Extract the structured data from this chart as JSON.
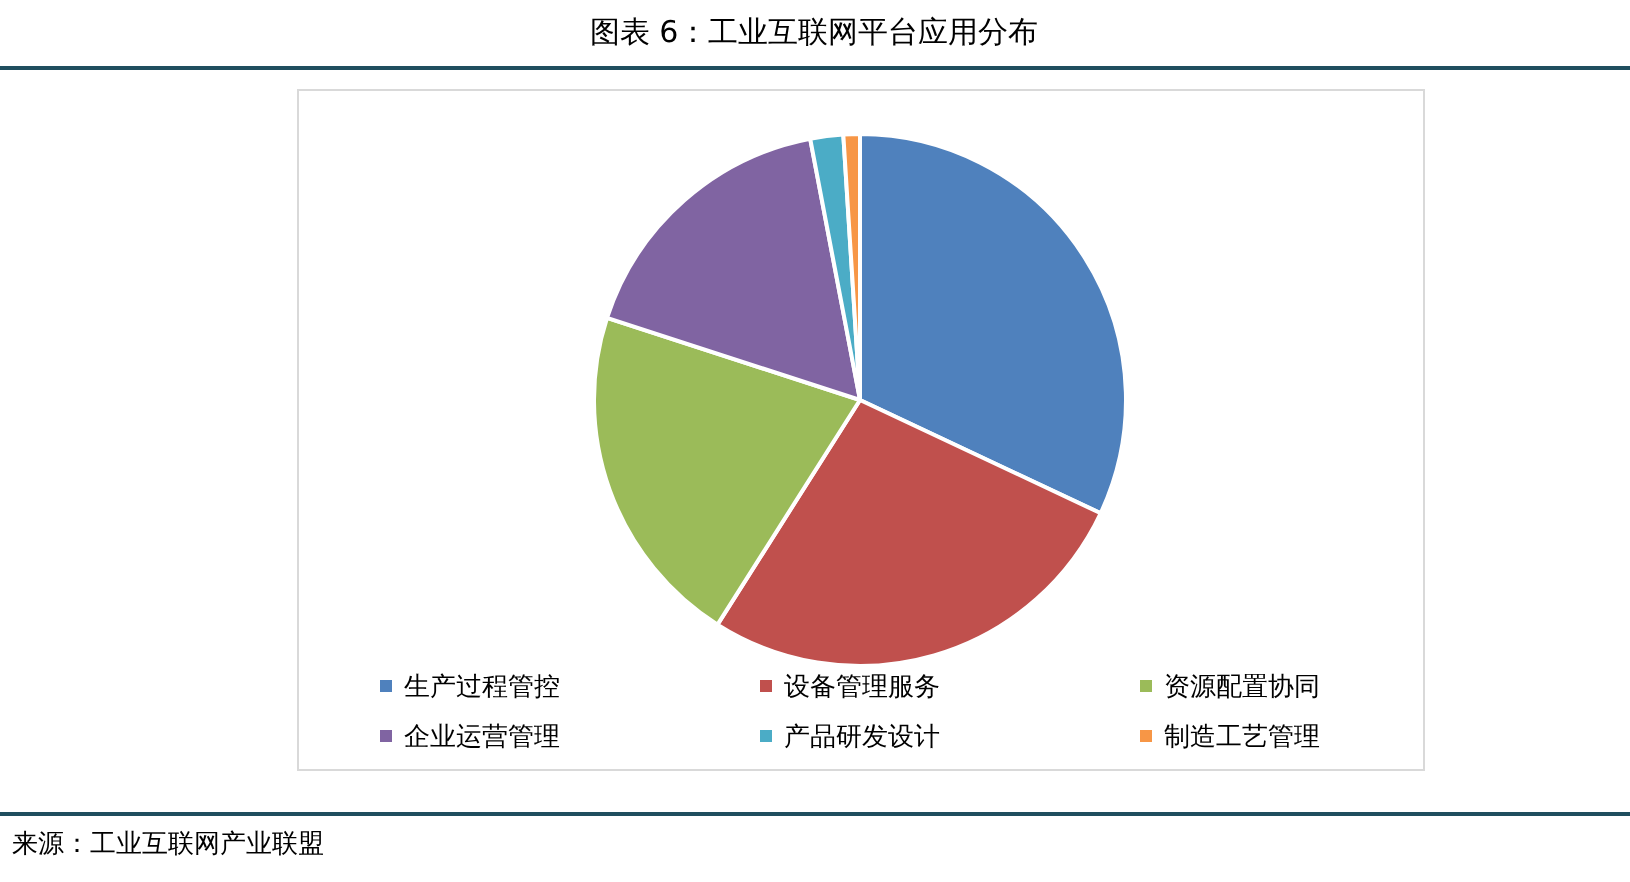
{
  "chart_data": {
    "type": "pie",
    "title": "图表 6：工业互联网平台应用分布",
    "categories": [
      "生产过程管控",
      "设备管理服务",
      "资源配置协同",
      "企业运营管理",
      "产品研发设计",
      "制造工艺管理"
    ],
    "values": [
      32,
      27,
      21,
      17,
      2,
      1
    ],
    "colors": [
      "#4f81bd",
      "#c0504d",
      "#9bbb59",
      "#8064a2",
      "#4bacc6",
      "#f79646"
    ],
    "legend": "bottom",
    "annotations": [
      "来源：工业互联网产业联盟"
    ]
  }
}
